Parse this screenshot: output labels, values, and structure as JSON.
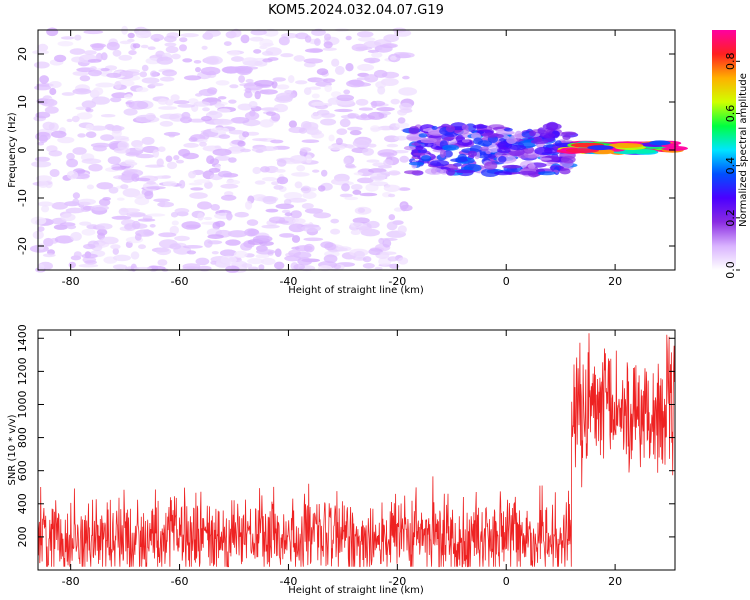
{
  "figure": {
    "title": "KOM5.2024.032.04.07.G19"
  },
  "chart_data": [
    {
      "type": "heatmap",
      "xlabel": "Height of straight line (km)",
      "ylabel": "Frequency (Hz)",
      "xlim": [
        -86,
        31
      ],
      "ylim": [
        -25,
        25
      ],
      "xticks": [
        -80,
        -60,
        -40,
        -20,
        0,
        20
      ],
      "yticks": [
        -20,
        -10,
        0,
        10,
        20
      ],
      "colorbar": {
        "label": "Normalized spectral amplitude",
        "range": [
          0,
          0.92
        ],
        "ticks": [
          0.0,
          0.2,
          0.4,
          0.6,
          0.8
        ],
        "colormap": [
          "#ffffff",
          "#d9b3ff",
          "#8a2be2",
          "#4b00ff",
          "#0050ff",
          "#00e5ff",
          "#00ff40",
          "#d0ff00",
          "#ffb000",
          "#ff2020",
          "#ff00a0"
        ]
      },
      "features": [
        {
          "x_range": [
            -86,
            -18
          ],
          "y_range": [
            -25,
            25
          ],
          "level": 0.08,
          "pattern": "scattered noise blobs"
        },
        {
          "x_range": [
            -18,
            12
          ],
          "y_range": [
            -5,
            5
          ],
          "level": 0.3,
          "pattern": "denser signal cluster near 0 Hz"
        },
        {
          "x_range": [
            12,
            31
          ],
          "y_range": [
            -0.5,
            1.5
          ],
          "level": 0.85,
          "pattern": "narrow strong carrier line near 0–1 Hz"
        }
      ]
    },
    {
      "type": "line",
      "xlabel": "Height of straight line (km)",
      "ylabel": "SNR (10 * v/v)",
      "xlim": [
        -86,
        31
      ],
      "ylim": [
        0,
        1450
      ],
      "xticks": [
        -80,
        -60,
        -40,
        -20,
        0,
        20
      ],
      "yticks": [
        200,
        400,
        600,
        800,
        1000,
        1200,
        1400
      ],
      "series": [
        {
          "color": "#ee2222",
          "segments": [
            {
              "x_range": [
                -86,
                12
              ],
              "mean": 200,
              "min": 20,
              "max": 620
            },
            {
              "x_range": [
                12,
                31
              ],
              "mean": 950,
              "min": 500,
              "max": 1450
            }
          ]
        }
      ]
    }
  ]
}
